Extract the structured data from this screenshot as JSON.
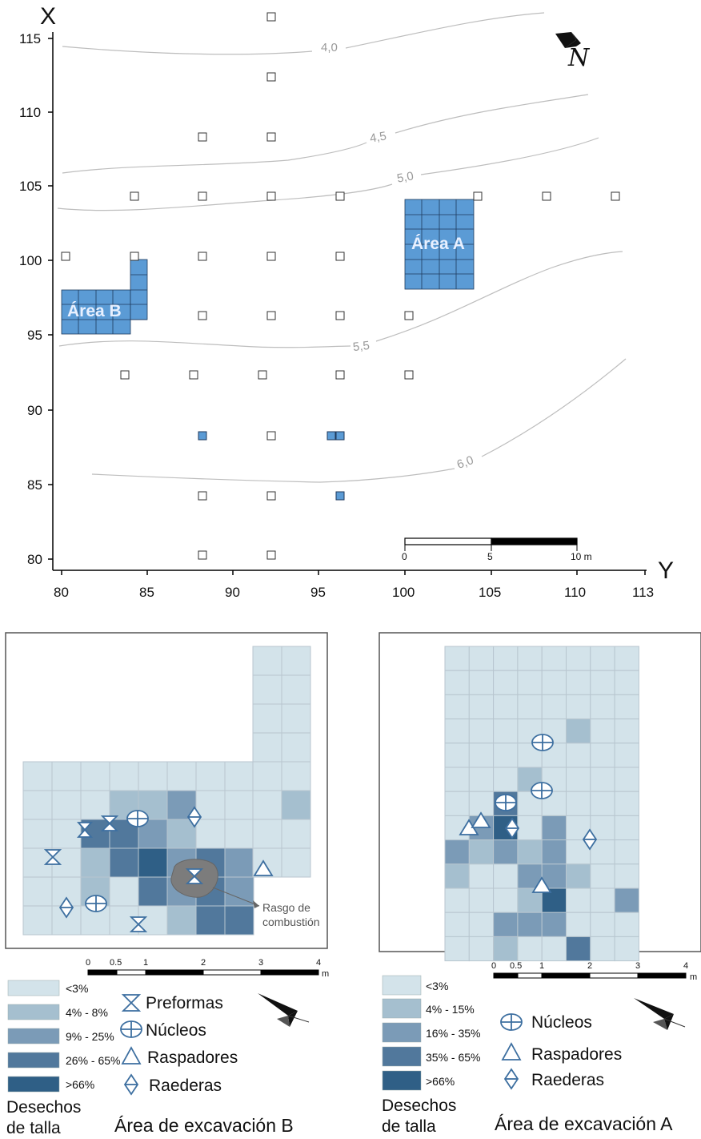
{
  "site_map": {
    "x_axis_name": "X",
    "y_axis_name": "Y",
    "x_ticks": [
      "115",
      "110",
      "105",
      "100",
      "95",
      "90",
      "85",
      "80"
    ],
    "y_ticks": [
      "80",
      "85",
      "90",
      "95",
      "100",
      "105",
      "110",
      "113"
    ],
    "north_label": "N",
    "area_a_label": "Área A",
    "area_b_label": "Área B",
    "contours": [
      "4,0",
      "4,5",
      "5,0",
      "5,5",
      "6,0"
    ],
    "scale": {
      "labels": [
        "0",
        "5",
        "10 m"
      ]
    }
  },
  "panel_b": {
    "scale_labels": [
      "0",
      "0.5",
      "1",
      "2",
      "3",
      "4",
      "m"
    ],
    "legend": [
      "<3%",
      "4% - 8%",
      "9% - 25%",
      "26% - 65%",
      ">66%"
    ],
    "legend_title": [
      "Desechos",
      "de talla"
    ],
    "symbols": [
      "Preformas",
      "Núcleos",
      "Raspadores",
      "Raederas"
    ],
    "annotation": [
      "Rasgo de",
      "combustión"
    ],
    "caption": "Área de excavación B"
  },
  "panel_a": {
    "scale_labels": [
      "0",
      "0.5",
      "1",
      "2",
      "3",
      "4",
      "m"
    ],
    "legend": [
      "<3%",
      "4% - 15%",
      "16% - 35%",
      "35% - 65%",
      ">66%"
    ],
    "legend_title": [
      "Desechos",
      "de talla"
    ],
    "symbols": [
      "Núcleos",
      "Raspadores",
      "Raederas"
    ],
    "caption": "Área de excavación A"
  },
  "colors": {
    "area_fill": "#5b9bd5",
    "c1": "#d3e3ea",
    "c2": "#a5bfcf",
    "c3": "#7b9bb7",
    "c4": "#51789c",
    "c5": "#2f5f86",
    "symbol": "#3d6fa0"
  }
}
